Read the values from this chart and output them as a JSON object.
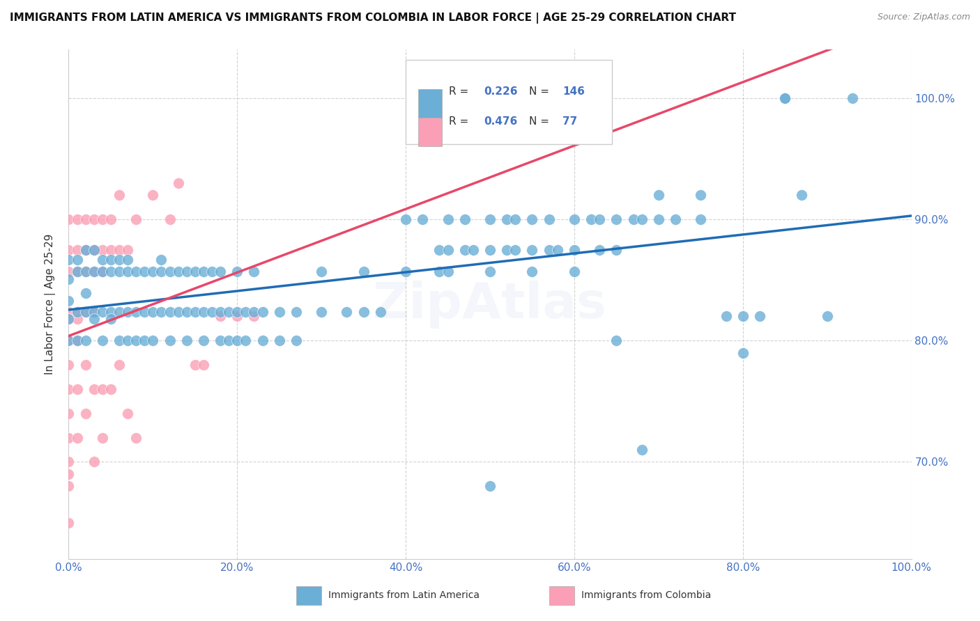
{
  "title": "IMMIGRANTS FROM LATIN AMERICA VS IMMIGRANTS FROM COLOMBIA IN LABOR FORCE | AGE 25-29 CORRELATION CHART",
  "source": "Source: ZipAtlas.com",
  "ylabel": "In Labor Force | Age 25-29",
  "xlim": [
    0.0,
    1.0
  ],
  "ylim": [
    0.62,
    1.04
  ],
  "x_tick_labels": [
    "0.0%",
    "20.0%",
    "40.0%",
    "60.0%",
    "80.0%",
    "100.0%"
  ],
  "x_ticks": [
    0.0,
    0.2,
    0.4,
    0.6,
    0.8,
    1.0
  ],
  "y_tick_labels": [
    "70.0%",
    "80.0%",
    "90.0%",
    "100.0%"
  ],
  "y_ticks": [
    0.7,
    0.8,
    0.9,
    1.0
  ],
  "right_y_tick_labels": [
    "100.0%",
    "90.0%",
    "80.0%",
    "70.0%"
  ],
  "right_y_ticks": [
    1.0,
    0.9,
    0.8,
    0.7
  ],
  "color_blue": "#6baed6",
  "color_pink": "#fa9fb5",
  "line_blue": "#1f6cb5",
  "line_pink": "#e8476a",
  "R_blue": 0.226,
  "N_blue": 146,
  "R_pink": 0.476,
  "N_pink": 77,
  "watermark": "ZipAtlas",
  "legend_label_blue": "Immigrants from Latin America",
  "legend_label_pink": "Immigrants from Colombia",
  "background_color": "#ffffff",
  "blue_scatter": [
    [
      0.0,
      0.851
    ],
    [
      0.0,
      0.833
    ],
    [
      0.0,
      0.8
    ],
    [
      0.0,
      0.867
    ],
    [
      0.0,
      0.818
    ],
    [
      0.01,
      0.857
    ],
    [
      0.01,
      0.824
    ],
    [
      0.01,
      0.867
    ],
    [
      0.01,
      0.8
    ],
    [
      0.02,
      0.857
    ],
    [
      0.02,
      0.839
    ],
    [
      0.02,
      0.824
    ],
    [
      0.02,
      0.8
    ],
    [
      0.02,
      0.875
    ],
    [
      0.03,
      0.857
    ],
    [
      0.03,
      0.824
    ],
    [
      0.03,
      0.875
    ],
    [
      0.03,
      0.818
    ],
    [
      0.04,
      0.857
    ],
    [
      0.04,
      0.824
    ],
    [
      0.04,
      0.8
    ],
    [
      0.04,
      0.867
    ],
    [
      0.05,
      0.857
    ],
    [
      0.05,
      0.824
    ],
    [
      0.05,
      0.867
    ],
    [
      0.05,
      0.818
    ],
    [
      0.06,
      0.824
    ],
    [
      0.06,
      0.8
    ],
    [
      0.06,
      0.857
    ],
    [
      0.06,
      0.867
    ],
    [
      0.07,
      0.857
    ],
    [
      0.07,
      0.824
    ],
    [
      0.07,
      0.867
    ],
    [
      0.07,
      0.8
    ],
    [
      0.08,
      0.857
    ],
    [
      0.08,
      0.824
    ],
    [
      0.08,
      0.8
    ],
    [
      0.09,
      0.824
    ],
    [
      0.09,
      0.857
    ],
    [
      0.09,
      0.8
    ],
    [
      0.1,
      0.857
    ],
    [
      0.1,
      0.824
    ],
    [
      0.1,
      0.8
    ],
    [
      0.11,
      0.824
    ],
    [
      0.11,
      0.857
    ],
    [
      0.11,
      0.867
    ],
    [
      0.12,
      0.824
    ],
    [
      0.12,
      0.857
    ],
    [
      0.12,
      0.8
    ],
    [
      0.13,
      0.824
    ],
    [
      0.13,
      0.857
    ],
    [
      0.14,
      0.824
    ],
    [
      0.14,
      0.857
    ],
    [
      0.14,
      0.8
    ],
    [
      0.15,
      0.824
    ],
    [
      0.15,
      0.857
    ],
    [
      0.16,
      0.824
    ],
    [
      0.16,
      0.857
    ],
    [
      0.16,
      0.8
    ],
    [
      0.17,
      0.824
    ],
    [
      0.17,
      0.857
    ],
    [
      0.18,
      0.824
    ],
    [
      0.18,
      0.857
    ],
    [
      0.18,
      0.8
    ],
    [
      0.19,
      0.824
    ],
    [
      0.19,
      0.8
    ],
    [
      0.2,
      0.824
    ],
    [
      0.2,
      0.857
    ],
    [
      0.2,
      0.8
    ],
    [
      0.21,
      0.824
    ],
    [
      0.21,
      0.8
    ],
    [
      0.22,
      0.824
    ],
    [
      0.22,
      0.857
    ],
    [
      0.23,
      0.824
    ],
    [
      0.23,
      0.8
    ],
    [
      0.25,
      0.824
    ],
    [
      0.25,
      0.8
    ],
    [
      0.27,
      0.824
    ],
    [
      0.27,
      0.8
    ],
    [
      0.3,
      0.857
    ],
    [
      0.3,
      0.824
    ],
    [
      0.33,
      0.824
    ],
    [
      0.35,
      0.824
    ],
    [
      0.35,
      0.857
    ],
    [
      0.37,
      0.824
    ],
    [
      0.4,
      0.857
    ],
    [
      0.4,
      0.9
    ],
    [
      0.42,
      0.9
    ],
    [
      0.44,
      0.875
    ],
    [
      0.44,
      0.857
    ],
    [
      0.45,
      0.875
    ],
    [
      0.45,
      0.857
    ],
    [
      0.45,
      0.9
    ],
    [
      0.47,
      0.875
    ],
    [
      0.47,
      0.9
    ],
    [
      0.48,
      0.875
    ],
    [
      0.5,
      0.9
    ],
    [
      0.5,
      0.875
    ],
    [
      0.5,
      0.857
    ],
    [
      0.5,
      0.68
    ],
    [
      0.52,
      0.9
    ],
    [
      0.52,
      0.875
    ],
    [
      0.53,
      0.875
    ],
    [
      0.53,
      0.9
    ],
    [
      0.55,
      0.875
    ],
    [
      0.55,
      0.9
    ],
    [
      0.55,
      0.857
    ],
    [
      0.57,
      0.875
    ],
    [
      0.57,
      0.9
    ],
    [
      0.58,
      0.875
    ],
    [
      0.6,
      0.9
    ],
    [
      0.6,
      0.875
    ],
    [
      0.6,
      0.857
    ],
    [
      0.62,
      0.9
    ],
    [
      0.63,
      0.9
    ],
    [
      0.63,
      0.875
    ],
    [
      0.65,
      0.9
    ],
    [
      0.65,
      0.875
    ],
    [
      0.65,
      0.8
    ],
    [
      0.67,
      0.9
    ],
    [
      0.68,
      0.9
    ],
    [
      0.68,
      0.71
    ],
    [
      0.7,
      0.92
    ],
    [
      0.7,
      0.9
    ],
    [
      0.72,
      0.9
    ],
    [
      0.75,
      0.92
    ],
    [
      0.75,
      0.9
    ],
    [
      0.78,
      0.82
    ],
    [
      0.8,
      0.82
    ],
    [
      0.8,
      0.79
    ],
    [
      0.82,
      0.82
    ],
    [
      0.85,
      1.0
    ],
    [
      0.85,
      1.0
    ],
    [
      0.87,
      0.92
    ],
    [
      0.9,
      0.82
    ],
    [
      0.93,
      1.0
    ]
  ],
  "pink_scatter": [
    [
      0.0,
      0.9
    ],
    [
      0.0,
      0.875
    ],
    [
      0.0,
      0.857
    ],
    [
      0.0,
      0.824
    ],
    [
      0.0,
      0.818
    ],
    [
      0.0,
      0.8
    ],
    [
      0.0,
      0.78
    ],
    [
      0.0,
      0.76
    ],
    [
      0.0,
      0.74
    ],
    [
      0.0,
      0.72
    ],
    [
      0.0,
      0.7
    ],
    [
      0.0,
      0.69
    ],
    [
      0.0,
      0.68
    ],
    [
      0.0,
      0.65
    ],
    [
      0.01,
      0.9
    ],
    [
      0.01,
      0.875
    ],
    [
      0.01,
      0.857
    ],
    [
      0.01,
      0.824
    ],
    [
      0.01,
      0.818
    ],
    [
      0.01,
      0.8
    ],
    [
      0.01,
      0.76
    ],
    [
      0.01,
      0.72
    ],
    [
      0.02,
      0.9
    ],
    [
      0.02,
      0.875
    ],
    [
      0.02,
      0.857
    ],
    [
      0.02,
      0.824
    ],
    [
      0.02,
      0.78
    ],
    [
      0.02,
      0.74
    ],
    [
      0.03,
      0.9
    ],
    [
      0.03,
      0.875
    ],
    [
      0.03,
      0.857
    ],
    [
      0.03,
      0.824
    ],
    [
      0.03,
      0.76
    ],
    [
      0.03,
      0.7
    ],
    [
      0.04,
      0.9
    ],
    [
      0.04,
      0.875
    ],
    [
      0.04,
      0.857
    ],
    [
      0.04,
      0.76
    ],
    [
      0.04,
      0.72
    ],
    [
      0.05,
      0.9
    ],
    [
      0.05,
      0.875
    ],
    [
      0.05,
      0.76
    ],
    [
      0.06,
      0.92
    ],
    [
      0.06,
      0.875
    ],
    [
      0.06,
      0.78
    ],
    [
      0.07,
      0.875
    ],
    [
      0.07,
      0.74
    ],
    [
      0.08,
      0.9
    ],
    [
      0.08,
      0.72
    ],
    [
      0.1,
      0.92
    ],
    [
      0.12,
      0.9
    ],
    [
      0.13,
      0.93
    ],
    [
      0.15,
      0.78
    ],
    [
      0.16,
      0.78
    ],
    [
      0.18,
      0.82
    ],
    [
      0.2,
      0.82
    ],
    [
      0.22,
      0.82
    ]
  ]
}
